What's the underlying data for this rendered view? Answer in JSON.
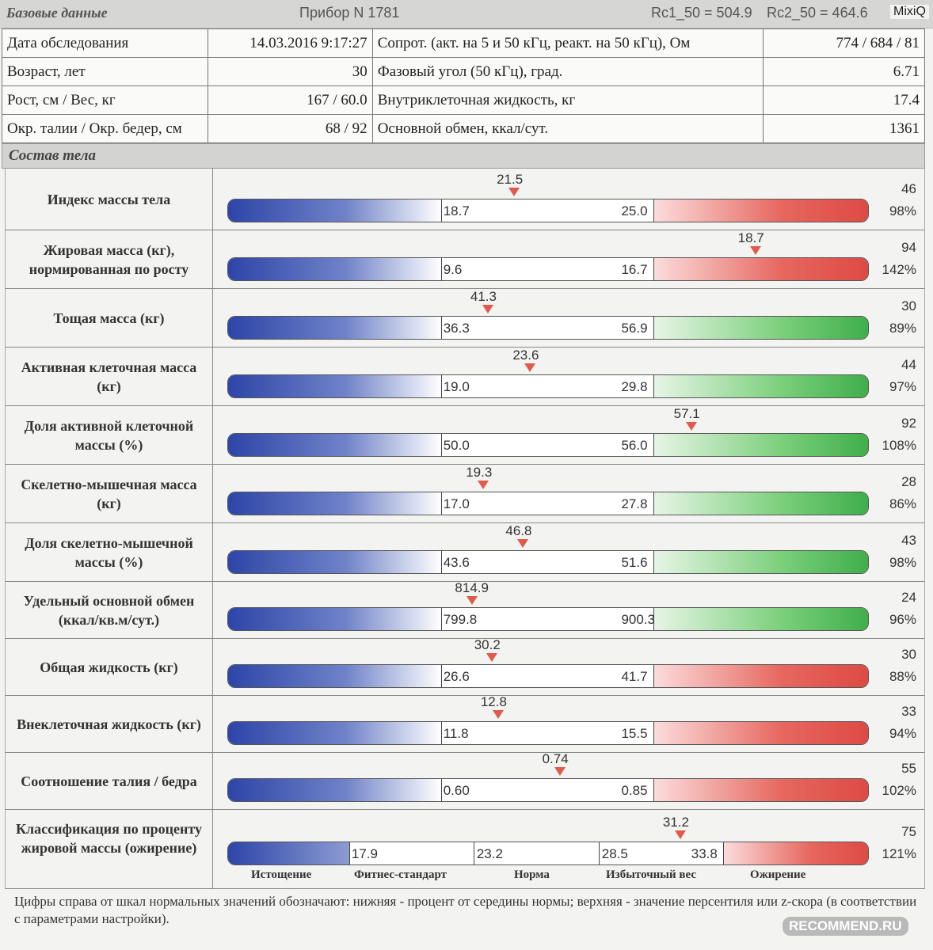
{
  "header": {
    "title": "Базовые данные",
    "device": "Прибор N 1781",
    "rc1": "Rc1_50 = 504.9",
    "rc2": "Rc2_50 = 464.6",
    "brand": "MixiQ"
  },
  "base_rows": [
    {
      "l1": "Дата обследования",
      "v1": "14.03.2016 9:17:27",
      "l2": "Сопрот. (акт. на 5 и 50 кГц, реакт. на 50 кГц), Ом",
      "v2": "774 / 684 / 81"
    },
    {
      "l1": "Возраст, лет",
      "v1": "30",
      "l2": "Фазовый угол (50 кГц), град.",
      "v2": "6.71"
    },
    {
      "l1": "Рост, см / Вес, кг",
      "v1": "167 / 60.0",
      "l2": "Внутриклеточная жидкость, кг",
      "v2": "17.4"
    },
    {
      "l1": "Окр. талии / Окр. бедер, см",
      "v1": "68 / 92",
      "l2": "Основной обмен, ккал/сут.",
      "v2": "1361"
    }
  ],
  "section": "Состав тела",
  "body_rows": [
    {
      "label": "Индекс массы тела",
      "low": "18.7",
      "high": "25.0",
      "value": "21.5",
      "pos": 0.447,
      "right_top": "46",
      "right_bottom": "98%",
      "color": "red"
    },
    {
      "label": "Жировая масса (кг), нормированная по росту",
      "low": "9.6",
      "high": "16.7",
      "value": "18.7",
      "pos": 0.823,
      "right_top": "94",
      "right_bottom": "142%",
      "color": "red"
    },
    {
      "label": "Тощая масса (кг)",
      "low": "36.3",
      "high": "56.9",
      "value": "41.3",
      "pos": 0.406,
      "right_top": "30",
      "right_bottom": "89%",
      "color": "green"
    },
    {
      "label": "Активная клеточная масса (кг)",
      "low": "19.0",
      "high": "29.8",
      "value": "23.6",
      "pos": 0.472,
      "right_top": "44",
      "right_bottom": "97%",
      "color": "green"
    },
    {
      "label": "Доля активной клеточной массы (%)",
      "low": "50.0",
      "high": "56.0",
      "value": "57.1",
      "pos": 0.723,
      "right_top": "92",
      "right_bottom": "108%",
      "color": "green"
    },
    {
      "label": "Скелетно-мышечная масса (кг)",
      "low": "17.0",
      "high": "27.8",
      "value": "19.3",
      "pos": 0.399,
      "right_top": "28",
      "right_bottom": "86%",
      "color": "green"
    },
    {
      "label": "Доля скелетно-мышечной массы (%)",
      "low": "43.6",
      "high": "51.6",
      "value": "46.8",
      "pos": 0.461,
      "right_top": "43",
      "right_bottom": "98%",
      "color": "green"
    },
    {
      "label": "Удельный основной обмен (ккал/кв.м/сут.)",
      "low": "799.8",
      "high": "900.3",
      "value": "814.9",
      "pos": 0.382,
      "right_top": "24",
      "right_bottom": "96%",
      "color": "green"
    },
    {
      "label": "Общая жидкость (кг)",
      "low": "26.6",
      "high": "41.7",
      "value": "30.2",
      "pos": 0.412,
      "right_top": "30",
      "right_bottom": "88%",
      "color": "red"
    },
    {
      "label": "Внеклеточная жидкость (кг)",
      "low": "11.8",
      "high": "15.5",
      "value": "12.8",
      "pos": 0.422,
      "right_top": "33",
      "right_bottom": "94%",
      "color": "red"
    },
    {
      "label": "Соотношение талия / бедра",
      "low": "0.60",
      "high": "0.85",
      "value": "0.74",
      "pos": 0.518,
      "right_top": "55",
      "right_bottom": "102%",
      "color": "red"
    }
  ],
  "classification": {
    "label": "Классификация по проценту жировой массы (ожирение)",
    "thresholds": [
      "17.9",
      "23.2",
      "28.5",
      "33.8"
    ],
    "categories": [
      "Истощение",
      "Фитнес-стандарт",
      "Норма",
      "Избыточный вес",
      "Ожирение"
    ],
    "value": "31.2",
    "pos": 0.706,
    "right_top": "75",
    "right_bottom": "121%"
  },
  "footnote": "Цифры справа от шкал нормальных значений обозначают: нижняя - процент от середины нормы; верхняя - значение персентиля или z-скора (в соответствии с параметрами настройки).",
  "watermark": "RECOMMEND.RU"
}
